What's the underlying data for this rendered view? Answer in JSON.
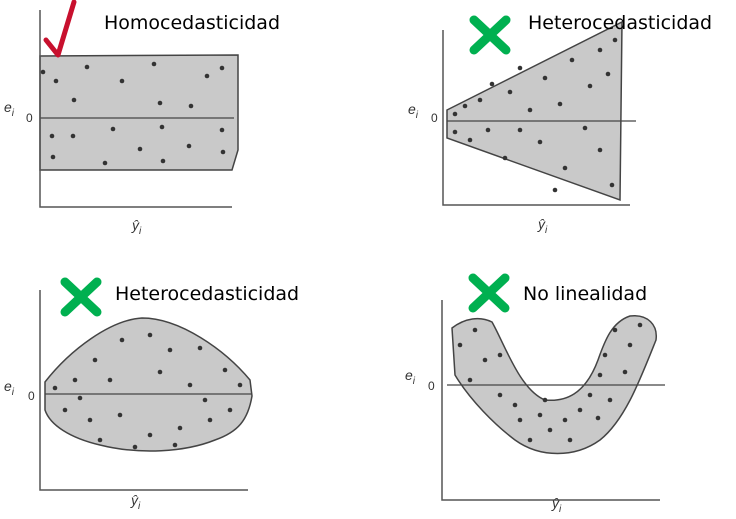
{
  "colors": {
    "check": "#c8102e",
    "cross": "#00b050",
    "band": "#c9c9c9"
  },
  "panels": [
    {
      "title": "Homocedasticidad",
      "status_icon": "check-icon",
      "ylabel": "e",
      "ysub": "i",
      "zero": "0",
      "xlabel": "ŷ",
      "xsub": "i"
    },
    {
      "title": "Heterocedasticidad",
      "status_icon": "cross-icon",
      "ylabel": "e",
      "ysub": "i",
      "zero": "0",
      "xlabel": "ŷ",
      "xsub": "i"
    },
    {
      "title": "Heterocedasticidad",
      "status_icon": "cross-icon",
      "ylabel": "e",
      "ysub": "i",
      "zero": "0",
      "xlabel": "ŷ",
      "xsub": "i"
    },
    {
      "title": "No linealidad",
      "status_icon": "cross-icon",
      "ylabel": "e",
      "ysub": "i",
      "zero": "0",
      "xlabel": "ŷ",
      "xsub": "i"
    }
  ]
}
